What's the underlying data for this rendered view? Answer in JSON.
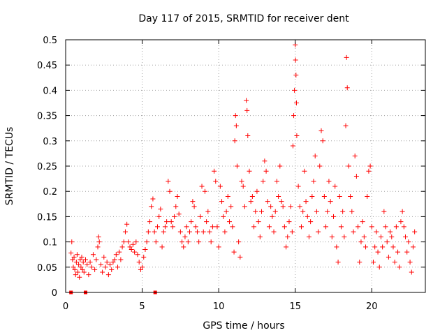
{
  "chart_data": {
    "type": "scatter",
    "title": "Day 117 of 2015, SRMTID for receiver dent",
    "xlabel": "GPS time / hours",
    "ylabel": "SRMTID / TECUs",
    "xlim": [
      0,
      23.5
    ],
    "ylim": [
      0,
      0.5
    ],
    "grid": true,
    "x_ticks": [
      {
        "value": 0,
        "label": "0"
      },
      {
        "value": 5,
        "label": "5"
      },
      {
        "value": 10,
        "label": "10"
      },
      {
        "value": 15,
        "label": "15"
      },
      {
        "value": 20,
        "label": "20"
      }
    ],
    "y_ticks": [
      {
        "value": 0,
        "label": "0"
      },
      {
        "value": 0.05,
        "label": "0.05"
      },
      {
        "value": 0.1,
        "label": "0.1"
      },
      {
        "value": 0.15,
        "label": "0.15"
      },
      {
        "value": 0.2,
        "label": "0.2"
      },
      {
        "value": 0.25,
        "label": "0.25"
      },
      {
        "value": 0.3,
        "label": "0.3"
      },
      {
        "value": 0.35,
        "label": "0.35"
      },
      {
        "value": 0.4,
        "label": "0.4"
      },
      {
        "value": 0.45,
        "label": "0.45"
      },
      {
        "value": 0.5,
        "label": "0.5"
      }
    ],
    "marker": "+",
    "series": [
      {
        "name": "dent",
        "color": "#ff0000",
        "points": [
          [
            0.35,
            0.078
          ],
          [
            0.4,
            0.1
          ],
          [
            0.45,
            0.065
          ],
          [
            0.5,
            0.05
          ],
          [
            0.55,
            0.07
          ],
          [
            0.6,
            0.045
          ],
          [
            0.65,
            0.035
          ],
          [
            0.7,
            0.06
          ],
          [
            0.75,
            0.075
          ],
          [
            0.8,
            0.04
          ],
          [
            0.85,
            0.055
          ],
          [
            0.9,
            0.03
          ],
          [
            0.95,
            0.065
          ],
          [
            1.0,
            0.05
          ],
          [
            1.05,
            0.07
          ],
          [
            1.1,
            0.045
          ],
          [
            1.15,
            0.06
          ],
          [
            1.2,
            0.04
          ],
          [
            1.3,
            0.065
          ],
          [
            1.4,
            0.055
          ],
          [
            1.5,
            0.035
          ],
          [
            1.6,
            0.06
          ],
          [
            1.7,
            0.05
          ],
          [
            1.8,
            0.075
          ],
          [
            1.9,
            0.045
          ],
          [
            2.0,
            0.065
          ],
          [
            2.1,
            0.09
          ],
          [
            2.15,
            0.11
          ],
          [
            2.2,
            0.1
          ],
          [
            2.3,
            0.055
          ],
          [
            2.4,
            0.04
          ],
          [
            2.5,
            0.07
          ],
          [
            2.6,
            0.05
          ],
          [
            2.7,
            0.06
          ],
          [
            2.8,
            0.035
          ],
          [
            2.9,
            0.055
          ],
          [
            3.0,
            0.045
          ],
          [
            3.1,
            0.06
          ],
          [
            3.2,
            0.065
          ],
          [
            3.3,
            0.075
          ],
          [
            3.4,
            0.05
          ],
          [
            3.5,
            0.08
          ],
          [
            3.6,
            0.065
          ],
          [
            3.7,
            0.09
          ],
          [
            3.8,
            0.1
          ],
          [
            3.9,
            0.12
          ],
          [
            4.0,
            0.135
          ],
          [
            4.1,
            0.1
          ],
          [
            4.2,
            0.09
          ],
          [
            4.3,
            0.085
          ],
          [
            4.4,
            0.095
          ],
          [
            4.5,
            0.08
          ],
          [
            4.6,
            0.1
          ],
          [
            4.7,
            0.075
          ],
          [
            4.8,
            0.06
          ],
          [
            4.9,
            0.045
          ],
          [
            5.0,
            0.05
          ],
          [
            5.1,
            0.07
          ],
          [
            5.2,
            0.085
          ],
          [
            5.3,
            0.1
          ],
          [
            5.4,
            0.12
          ],
          [
            5.5,
            0.14
          ],
          [
            5.6,
            0.17
          ],
          [
            5.7,
            0.185
          ],
          [
            5.8,
            0.12
          ],
          [
            5.9,
            0.1
          ],
          [
            6.0,
            0.13
          ],
          [
            6.1,
            0.15
          ],
          [
            6.2,
            0.165
          ],
          [
            6.3,
            0.09
          ],
          [
            6.4,
            0.12
          ],
          [
            6.5,
            0.13
          ],
          [
            6.6,
            0.14
          ],
          [
            6.7,
            0.22
          ],
          [
            6.8,
            0.2
          ],
          [
            6.9,
            0.14
          ],
          [
            7.0,
            0.13
          ],
          [
            7.1,
            0.15
          ],
          [
            7.2,
            0.17
          ],
          [
            7.3,
            0.19
          ],
          [
            7.4,
            0.155
          ],
          [
            7.5,
            0.12
          ],
          [
            7.6,
            0.1
          ],
          [
            7.7,
            0.09
          ],
          [
            7.8,
            0.11
          ],
          [
            7.9,
            0.13
          ],
          [
            8.0,
            0.1
          ],
          [
            8.1,
            0.12
          ],
          [
            8.2,
            0.14
          ],
          [
            8.3,
            0.18
          ],
          [
            8.4,
            0.17
          ],
          [
            8.5,
            0.13
          ],
          [
            8.6,
            0.12
          ],
          [
            8.7,
            0.1
          ],
          [
            8.8,
            0.15
          ],
          [
            8.9,
            0.21
          ],
          [
            9.0,
            0.12
          ],
          [
            9.1,
            0.2
          ],
          [
            9.2,
            0.14
          ],
          [
            9.3,
            0.16
          ],
          [
            9.4,
            0.12
          ],
          [
            9.5,
            0.1
          ],
          [
            9.6,
            0.13
          ],
          [
            9.7,
            0.24
          ],
          [
            9.8,
            0.22
          ],
          [
            9.9,
            0.13
          ],
          [
            10.0,
            0.09
          ],
          [
            10.1,
            0.21
          ],
          [
            10.2,
            0.18
          ],
          [
            10.3,
            0.15
          ],
          [
            10.4,
            0.12
          ],
          [
            10.5,
            0.16
          ],
          [
            10.6,
            0.19
          ],
          [
            10.7,
            0.14
          ],
          [
            10.8,
            0.17
          ],
          [
            10.9,
            0.13
          ],
          [
            11.0,
            0.08
          ],
          [
            11.05,
            0.3
          ],
          [
            11.1,
            0.35
          ],
          [
            11.15,
            0.33
          ],
          [
            11.2,
            0.25
          ],
          [
            11.3,
            0.1
          ],
          [
            11.4,
            0.07
          ],
          [
            11.5,
            0.22
          ],
          [
            11.6,
            0.21
          ],
          [
            11.7,
            0.17
          ],
          [
            11.8,
            0.38
          ],
          [
            11.85,
            0.36
          ],
          [
            11.9,
            0.31
          ],
          [
            12.0,
            0.24
          ],
          [
            12.1,
            0.18
          ],
          [
            12.2,
            0.19
          ],
          [
            12.3,
            0.13
          ],
          [
            12.4,
            0.16
          ],
          [
            12.5,
            0.2
          ],
          [
            12.6,
            0.14
          ],
          [
            12.7,
            0.11
          ],
          [
            12.8,
            0.16
          ],
          [
            12.9,
            0.22
          ],
          [
            13.0,
            0.26
          ],
          [
            13.1,
            0.24
          ],
          [
            13.2,
            0.18
          ],
          [
            13.3,
            0.13
          ],
          [
            13.4,
            0.17
          ],
          [
            13.5,
            0.15
          ],
          [
            13.6,
            0.12
          ],
          [
            13.7,
            0.16
          ],
          [
            13.8,
            0.22
          ],
          [
            13.9,
            0.19
          ],
          [
            14.0,
            0.25
          ],
          [
            14.1,
            0.18
          ],
          [
            14.2,
            0.17
          ],
          [
            14.3,
            0.13
          ],
          [
            14.4,
            0.09
          ],
          [
            14.5,
            0.11
          ],
          [
            14.6,
            0.14
          ],
          [
            14.7,
            0.17
          ],
          [
            14.8,
            0.12
          ],
          [
            14.85,
            0.29
          ],
          [
            14.9,
            0.35
          ],
          [
            14.95,
            0.4
          ],
          [
            15.0,
            0.49
          ],
          [
            15.02,
            0.46
          ],
          [
            15.05,
            0.43
          ],
          [
            15.08,
            0.375
          ],
          [
            15.1,
            0.31
          ],
          [
            15.2,
            0.21
          ],
          [
            15.3,
            0.17
          ],
          [
            15.4,
            0.13
          ],
          [
            15.5,
            0.16
          ],
          [
            15.6,
            0.24
          ],
          [
            15.7,
            0.18
          ],
          [
            15.8,
            0.15
          ],
          [
            15.9,
            0.11
          ],
          [
            16.0,
            0.14
          ],
          [
            16.1,
            0.19
          ],
          [
            16.2,
            0.22
          ],
          [
            16.3,
            0.27
          ],
          [
            16.4,
            0.16
          ],
          [
            16.5,
            0.12
          ],
          [
            16.6,
            0.25
          ],
          [
            16.7,
            0.32
          ],
          [
            16.8,
            0.3
          ],
          [
            16.9,
            0.19
          ],
          [
            17.0,
            0.13
          ],
          [
            17.1,
            0.16
          ],
          [
            17.2,
            0.22
          ],
          [
            17.3,
            0.18
          ],
          [
            17.4,
            0.11
          ],
          [
            17.5,
            0.15
          ],
          [
            17.6,
            0.21
          ],
          [
            17.7,
            0.09
          ],
          [
            17.8,
            0.06
          ],
          [
            17.9,
            0.19
          ],
          [
            18.0,
            0.13
          ],
          [
            18.1,
            0.16
          ],
          [
            18.2,
            0.11
          ],
          [
            18.3,
            0.33
          ],
          [
            18.35,
            0.465
          ],
          [
            18.4,
            0.405
          ],
          [
            18.5,
            0.25
          ],
          [
            18.6,
            0.19
          ],
          [
            18.7,
            0.16
          ],
          [
            18.8,
            0.12
          ],
          [
            18.9,
            0.27
          ],
          [
            19.0,
            0.23
          ],
          [
            19.1,
            0.13
          ],
          [
            19.2,
            0.06
          ],
          [
            19.3,
            0.1
          ],
          [
            19.4,
            0.14
          ],
          [
            19.5,
            0.11
          ],
          [
            19.6,
            0.09
          ],
          [
            19.7,
            0.19
          ],
          [
            19.8,
            0.24
          ],
          [
            19.9,
            0.25
          ],
          [
            20.0,
            0.13
          ],
          [
            20.1,
            0.06
          ],
          [
            20.2,
            0.09
          ],
          [
            20.3,
            0.12
          ],
          [
            20.4,
            0.08
          ],
          [
            20.5,
            0.05
          ],
          [
            20.6,
            0.11
          ],
          [
            20.7,
            0.09
          ],
          [
            20.8,
            0.16
          ],
          [
            20.9,
            0.13
          ],
          [
            21.0,
            0.1
          ],
          [
            21.1,
            0.07
          ],
          [
            21.2,
            0.12
          ],
          [
            21.3,
            0.11
          ],
          [
            21.4,
            0.09
          ],
          [
            21.5,
            0.06
          ],
          [
            21.6,
            0.13
          ],
          [
            21.7,
            0.08
          ],
          [
            21.8,
            0.05
          ],
          [
            21.9,
            0.14
          ],
          [
            22.0,
            0.16
          ],
          [
            22.1,
            0.13
          ],
          [
            22.2,
            0.11
          ],
          [
            22.3,
            0.08
          ],
          [
            22.4,
            0.1
          ],
          [
            22.5,
            0.06
          ],
          [
            22.6,
            0.04
          ],
          [
            22.7,
            0.09
          ],
          [
            22.8,
            0.12
          ]
        ],
        "zero_points": [
          0.35,
          1.3,
          5.85
        ]
      }
    ]
  }
}
